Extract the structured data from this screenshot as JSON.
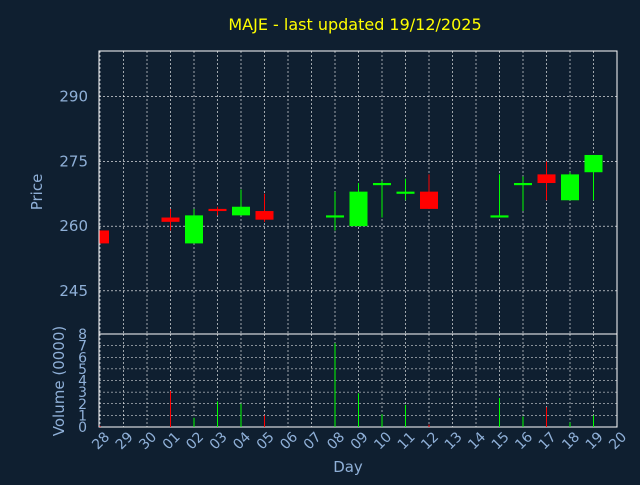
{
  "colors": {
    "background": "#0f1f30",
    "title": "#ffff00",
    "axis_text": "#8fb0d8",
    "frame": "#ffffff",
    "grid": "#ffffff",
    "up": "#00ff00",
    "down": "#ff0000"
  },
  "chart_data": [
    {
      "type": "candlestick",
      "title": "MAJE - last updated 19/12/2025",
      "ylabel": "Price",
      "ylim": [
        235.0,
        300.6
      ],
      "yticks": [
        245,
        260,
        275,
        290
      ],
      "grid": true,
      "candles": [
        {
          "x": "28",
          "open": 259.0,
          "high": 259.0,
          "low": 256.0,
          "close": 256.0
        },
        {
          "x": "01",
          "open": 262.0,
          "high": 264.0,
          "low": 259.0,
          "close": 261.0
        },
        {
          "x": "02",
          "open": 256.0,
          "high": 264.0,
          "low": 256.0,
          "close": 262.5
        },
        {
          "x": "03",
          "open": 264.0,
          "high": 264.5,
          "low": 262.5,
          "close": 263.5
        },
        {
          "x": "04",
          "open": 262.5,
          "high": 268.5,
          "low": 262.5,
          "close": 264.5
        },
        {
          "x": "05",
          "open": 263.5,
          "high": 267.5,
          "low": 261.0,
          "close": 261.5
        },
        {
          "x": "08",
          "open": 262.0,
          "high": 268.0,
          "low": 259.0,
          "close": 262.5
        },
        {
          "x": "09",
          "open": 260.0,
          "high": 270.0,
          "low": 260.0,
          "close": 268.0
        },
        {
          "x": "10",
          "open": 269.5,
          "high": 270.5,
          "low": 262.0,
          "close": 270.0
        },
        {
          "x": "11",
          "open": 267.5,
          "high": 271.0,
          "low": 266.0,
          "close": 268.0
        },
        {
          "x": "12",
          "open": 268.0,
          "high": 272.0,
          "low": 264.0,
          "close": 264.0
        },
        {
          "x": "15",
          "open": 262.0,
          "high": 272.0,
          "low": 262.0,
          "close": 262.5
        },
        {
          "x": "16",
          "open": 269.5,
          "high": 271.5,
          "low": 263.5,
          "close": 270.0
        },
        {
          "x": "17",
          "open": 272.0,
          "high": 275.0,
          "low": 266.0,
          "close": 270.0
        },
        {
          "x": "18",
          "open": 266.0,
          "high": 272.5,
          "low": 266.0,
          "close": 272.0
        },
        {
          "x": "19",
          "open": 272.5,
          "high": 276.5,
          "low": 266.0,
          "close": 276.5
        }
      ]
    },
    {
      "type": "bar",
      "xlabel": "Day",
      "ylabel": "Volume (0000)",
      "ylim": [
        0,
        8
      ],
      "yticks": [
        0,
        1,
        2,
        3,
        4,
        5,
        6,
        7,
        8
      ],
      "grid": true,
      "categories": [
        "28",
        "29",
        "30",
        "01",
        "02",
        "03",
        "04",
        "05",
        "06",
        "07",
        "08",
        "09",
        "10",
        "11",
        "12",
        "13",
        "14",
        "15",
        "16",
        "17",
        "18",
        "19",
        "20"
      ],
      "bars": [
        {
          "x": "28",
          "value": 0.1,
          "direction": "down"
        },
        {
          "x": "01",
          "value": 3.1,
          "direction": "down"
        },
        {
          "x": "02",
          "value": 0.8,
          "direction": "up"
        },
        {
          "x": "03",
          "value": 2.2,
          "direction": "up"
        },
        {
          "x": "04",
          "value": 2.0,
          "direction": "up"
        },
        {
          "x": "05",
          "value": 1.0,
          "direction": "down"
        },
        {
          "x": "08",
          "value": 7.2,
          "direction": "up"
        },
        {
          "x": "09",
          "value": 2.9,
          "direction": "up"
        },
        {
          "x": "10",
          "value": 1.1,
          "direction": "up"
        },
        {
          "x": "11",
          "value": 1.9,
          "direction": "up"
        },
        {
          "x": "12",
          "value": 0.2,
          "direction": "down"
        },
        {
          "x": "15",
          "value": 2.5,
          "direction": "up"
        },
        {
          "x": "16",
          "value": 0.9,
          "direction": "up"
        },
        {
          "x": "17",
          "value": 1.7,
          "direction": "down"
        },
        {
          "x": "18",
          "value": 0.4,
          "direction": "up"
        },
        {
          "x": "19",
          "value": 1.0,
          "direction": "up"
        }
      ]
    }
  ]
}
